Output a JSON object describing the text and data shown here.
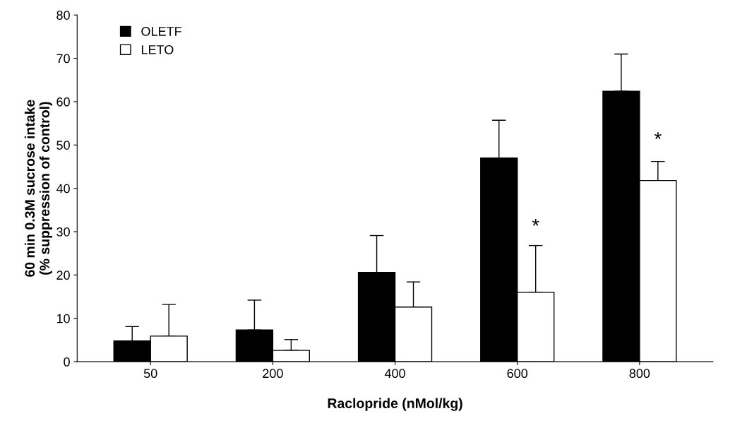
{
  "chart_data": {
    "type": "bar",
    "xlabel": "Raclopride (nMol/kg)",
    "ylabel": "60 min 0.3M sucrose intake\n(% suppression of control)",
    "categories": [
      "50",
      "200",
      "400",
      "600",
      "800"
    ],
    "series": [
      {
        "name": "OLETF",
        "color": "#000000",
        "values": [
          4.8,
          7.3,
          20.6,
          47.0,
          62.4
        ],
        "errors": [
          [
            4.8,
            8.1
          ],
          [
            7.3,
            14.2
          ],
          [
            20.6,
            29.1
          ],
          [
            47.0,
            55.7
          ],
          [
            62.4,
            71.0
          ]
        ]
      },
      {
        "name": "LETO",
        "color": "#ffffff",
        "values": [
          5.9,
          2.6,
          12.6,
          16.0,
          41.8
        ],
        "errors": [
          [
            5.9,
            13.2
          ],
          [
            2.6,
            5.1
          ],
          [
            12.6,
            18.4
          ],
          [
            16.0,
            26.8
          ],
          [
            41.8,
            46.2
          ]
        ]
      }
    ],
    "ylim": [
      0,
      80
    ],
    "yticks": [
      0,
      10,
      20,
      30,
      40,
      50,
      60,
      70,
      80
    ],
    "grid": false,
    "legend": "top left",
    "annotations": [
      {
        "text": "*",
        "x": "600",
        "y": 31
      },
      {
        "text": "*",
        "x": "800",
        "y": 51
      }
    ]
  }
}
